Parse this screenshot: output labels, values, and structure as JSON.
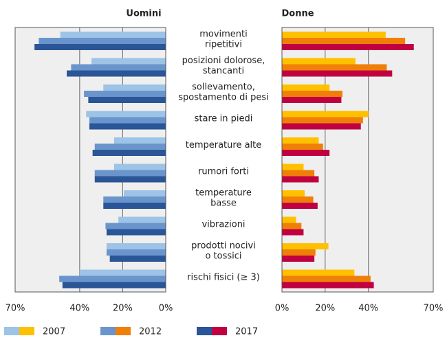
{
  "chart_data": [
    {
      "type": "bar",
      "orientation": "horizontal",
      "direction": "reversed",
      "title": "Uomini",
      "categories": [
        [
          "movimenti",
          "ripetitivi"
        ],
        [
          "posizioni dolorose,",
          "stancanti"
        ],
        [
          "sollevamento,",
          "spostamento di pesi"
        ],
        [
          "stare in piedi"
        ],
        [
          "temperature alte"
        ],
        [
          "rumori forti"
        ],
        [
          "temperature",
          "basse"
        ],
        [
          "vibrazioni"
        ],
        [
          "prodotti nocivi",
          "o tossici"
        ],
        [
          "rischi fisici (≥ 3)"
        ]
      ],
      "xlim": [
        0,
        70
      ],
      "xticks": [
        {
          "value": 0,
          "label": "0%"
        },
        {
          "value": 20,
          "label": "20%"
        },
        {
          "value": 40,
          "label": "40%"
        },
        {
          "value": 70,
          "label": "70%"
        }
      ],
      "grid": true,
      "series": [
        {
          "name": "2007",
          "color": "#9dc3e6",
          "values": [
            49,
            34.5,
            29,
            37,
            24,
            24,
            19.5,
            22,
            27.5,
            40
          ]
        },
        {
          "name": "2012",
          "color": "#6a95cc",
          "values": [
            59,
            44,
            38,
            35.5,
            33,
            33,
            29,
            28,
            27.5,
            49.5
          ]
        },
        {
          "name": "2017",
          "color": "#2a5597",
          "values": [
            61,
            46,
            36,
            35.5,
            34,
            33,
            29,
            27.5,
            26,
            48
          ]
        }
      ]
    },
    {
      "type": "bar",
      "orientation": "horizontal",
      "title": "Donne",
      "xlim": [
        0,
        70
      ],
      "xticks": [
        {
          "value": 0,
          "label": "0%"
        },
        {
          "value": 20,
          "label": "20%"
        },
        {
          "value": 40,
          "label": "40%"
        },
        {
          "value": 70,
          "label": "70%"
        }
      ],
      "grid": true,
      "series": [
        {
          "color": "#ffc000",
          "values": [
            48,
            34,
            22,
            40,
            17,
            10,
            10.5,
            6.5,
            21.5,
            33.5
          ]
        },
        {
          "color": "#f07f09",
          "values": [
            57,
            48.5,
            28,
            37.5,
            19,
            15,
            14.5,
            9,
            15.5,
            41
          ]
        },
        {
          "color": "#c00040",
          "values": [
            61,
            51,
            27.5,
            36.5,
            22,
            17,
            16.5,
            10,
            15,
            42.5
          ]
        }
      ]
    }
  ]
}
